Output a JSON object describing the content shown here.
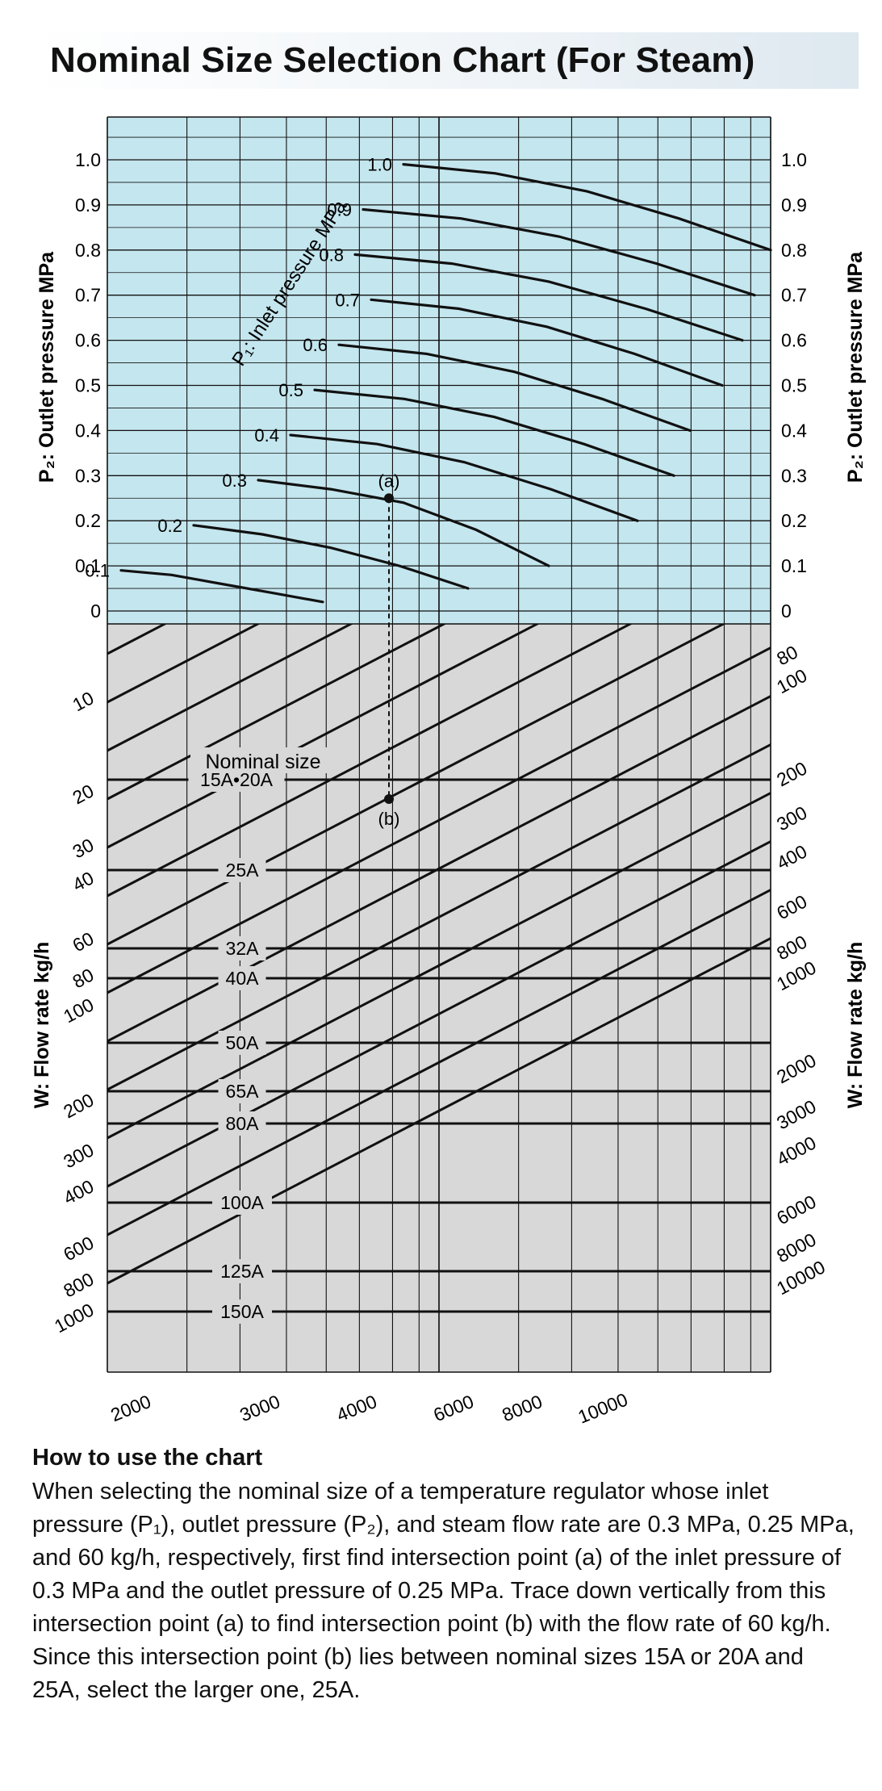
{
  "title": "Nominal Size Selection Chart (For Steam)",
  "colors": {
    "top_panel": "#c4e6ee",
    "bottom_panel": "#d8d8d8",
    "ink": "#111111"
  },
  "chart_data": {
    "type": "line",
    "top_chart": {
      "ylabel": "P₂: Outlet pressure MPa",
      "curve_label": "P₁: Inlet pressure MPa",
      "ylim": [
        0,
        1.0
      ],
      "y_ticks": [
        "1.0",
        "0.9",
        "0.8",
        "0.7",
        "0.6",
        "0.5",
        "0.4",
        "0.3",
        "0.2",
        "0.1",
        "0"
      ],
      "series": [
        {
          "name": "1.0",
          "P1": 1.0,
          "x": [
            0.0,
            0.25,
            0.5,
            0.75,
            1.0
          ],
          "y": [
            0.99,
            0.97,
            0.93,
            0.87,
            0.8
          ]
        },
        {
          "name": "0.9",
          "P1": 0.9,
          "x": [
            0.0,
            0.25,
            0.5,
            0.75,
            1.0
          ],
          "y": [
            0.89,
            0.87,
            0.83,
            0.77,
            0.7
          ]
        },
        {
          "name": "0.8",
          "P1": 0.8,
          "x": [
            0.0,
            0.25,
            0.5,
            0.75,
            1.0
          ],
          "y": [
            0.79,
            0.77,
            0.73,
            0.67,
            0.6
          ]
        },
        {
          "name": "0.7",
          "P1": 0.7,
          "x": [
            0.0,
            0.25,
            0.5,
            0.75,
            1.0
          ],
          "y": [
            0.69,
            0.67,
            0.63,
            0.57,
            0.5
          ]
        },
        {
          "name": "0.6",
          "P1": 0.6,
          "x": [
            0.0,
            0.25,
            0.5,
            0.75,
            1.0
          ],
          "y": [
            0.59,
            0.57,
            0.53,
            0.47,
            0.4
          ]
        },
        {
          "name": "0.5",
          "P1": 0.5,
          "x": [
            0.0,
            0.25,
            0.5,
            0.75,
            1.0
          ],
          "y": [
            0.49,
            0.47,
            0.43,
            0.37,
            0.3
          ]
        },
        {
          "name": "0.4",
          "P1": 0.4,
          "x": [
            0.0,
            0.25,
            0.5,
            0.75,
            1.0
          ],
          "y": [
            0.39,
            0.37,
            0.33,
            0.27,
            0.2
          ]
        },
        {
          "name": "0.3",
          "P1": 0.3,
          "x": [
            0.0,
            0.25,
            0.5,
            0.75,
            1.0
          ],
          "y": [
            0.29,
            0.27,
            0.24,
            0.18,
            0.1
          ]
        },
        {
          "name": "0.2",
          "P1": 0.2,
          "x": [
            0.0,
            0.25,
            0.5,
            0.75,
            1.0
          ],
          "y": [
            0.19,
            0.17,
            0.14,
            0.1,
            0.05
          ]
        },
        {
          "name": "0.1",
          "P1": 0.1,
          "x": [
            0.0,
            0.25,
            0.5,
            0.75,
            1.0
          ],
          "y": [
            0.09,
            0.08,
            0.06,
            0.04,
            0.02
          ]
        }
      ],
      "point_a": {
        "label": "(a)",
        "P1": 0.3,
        "P2": 0.25
      }
    },
    "bottom_chart": {
      "ylabel": "W: Flow rate kg/h",
      "nominal_size_label": "Nominal size",
      "left_ticks": [
        "10",
        "20",
        "30",
        "40",
        "60",
        "80",
        "100",
        "200",
        "300",
        "400",
        "600",
        "800",
        "1000"
      ],
      "right_ticks": [
        "80",
        "100",
        "200",
        "300",
        "400",
        "600",
        "800",
        "1000",
        "2000",
        "3000",
        "4000",
        "6000",
        "8000",
        "10000"
      ],
      "bottom_ticks": [
        "2000",
        "3000",
        "4000",
        "6000",
        "8000",
        "10000"
      ],
      "nominal_sizes": [
        "15A•20A",
        "25A",
        "32A",
        "40A",
        "50A",
        "65A",
        "80A",
        "100A",
        "125A",
        "150A"
      ],
      "point_b": {
        "label": "(b)",
        "W": 60
      }
    }
  },
  "howto": {
    "title": "How to use the chart",
    "body": "When selecting the nominal size of a temperature regulator whose inlet pressure (P₁), outlet pressure (P₂), and steam flow rate are 0.3 MPa, 0.25 MPa, and 60 kg/h, respectively, first find intersection point (a) of the inlet pressure of 0.3 MPa and the outlet pressure of 0.25 MPa. Trace down vertically from this intersection point (a) to find intersection point (b) with the flow rate of 60 kg/h. Since this intersection point (b) lies between nominal sizes 15A or 20A and 25A, select the larger one, 25A."
  }
}
